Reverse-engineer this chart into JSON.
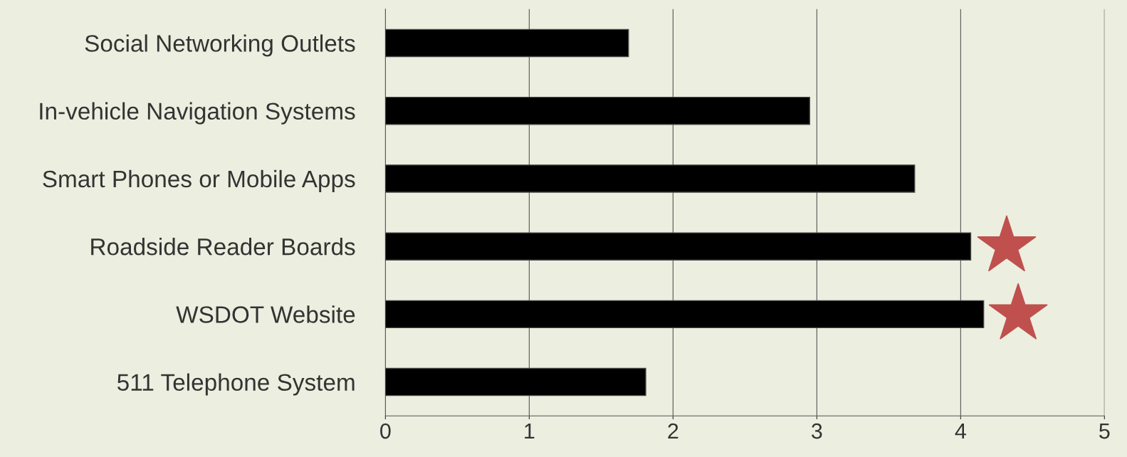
{
  "chart_data": {
    "type": "bar",
    "orientation": "horizontal",
    "categories": [
      "Social Networking Outlets",
      "In-vehicle Navigation Systems",
      "Smart Phones or Mobile Apps",
      "Roadside Reader Boards",
      "WSDOT Website",
      "511 Telephone System"
    ],
    "values": [
      1.69,
      2.95,
      3.68,
      4.07,
      4.16,
      1.81
    ],
    "color": "#000000",
    "xlim": [
      0,
      5
    ],
    "xticks": [
      0,
      1,
      2,
      3,
      4,
      5
    ],
    "grid": "x"
  }
}
